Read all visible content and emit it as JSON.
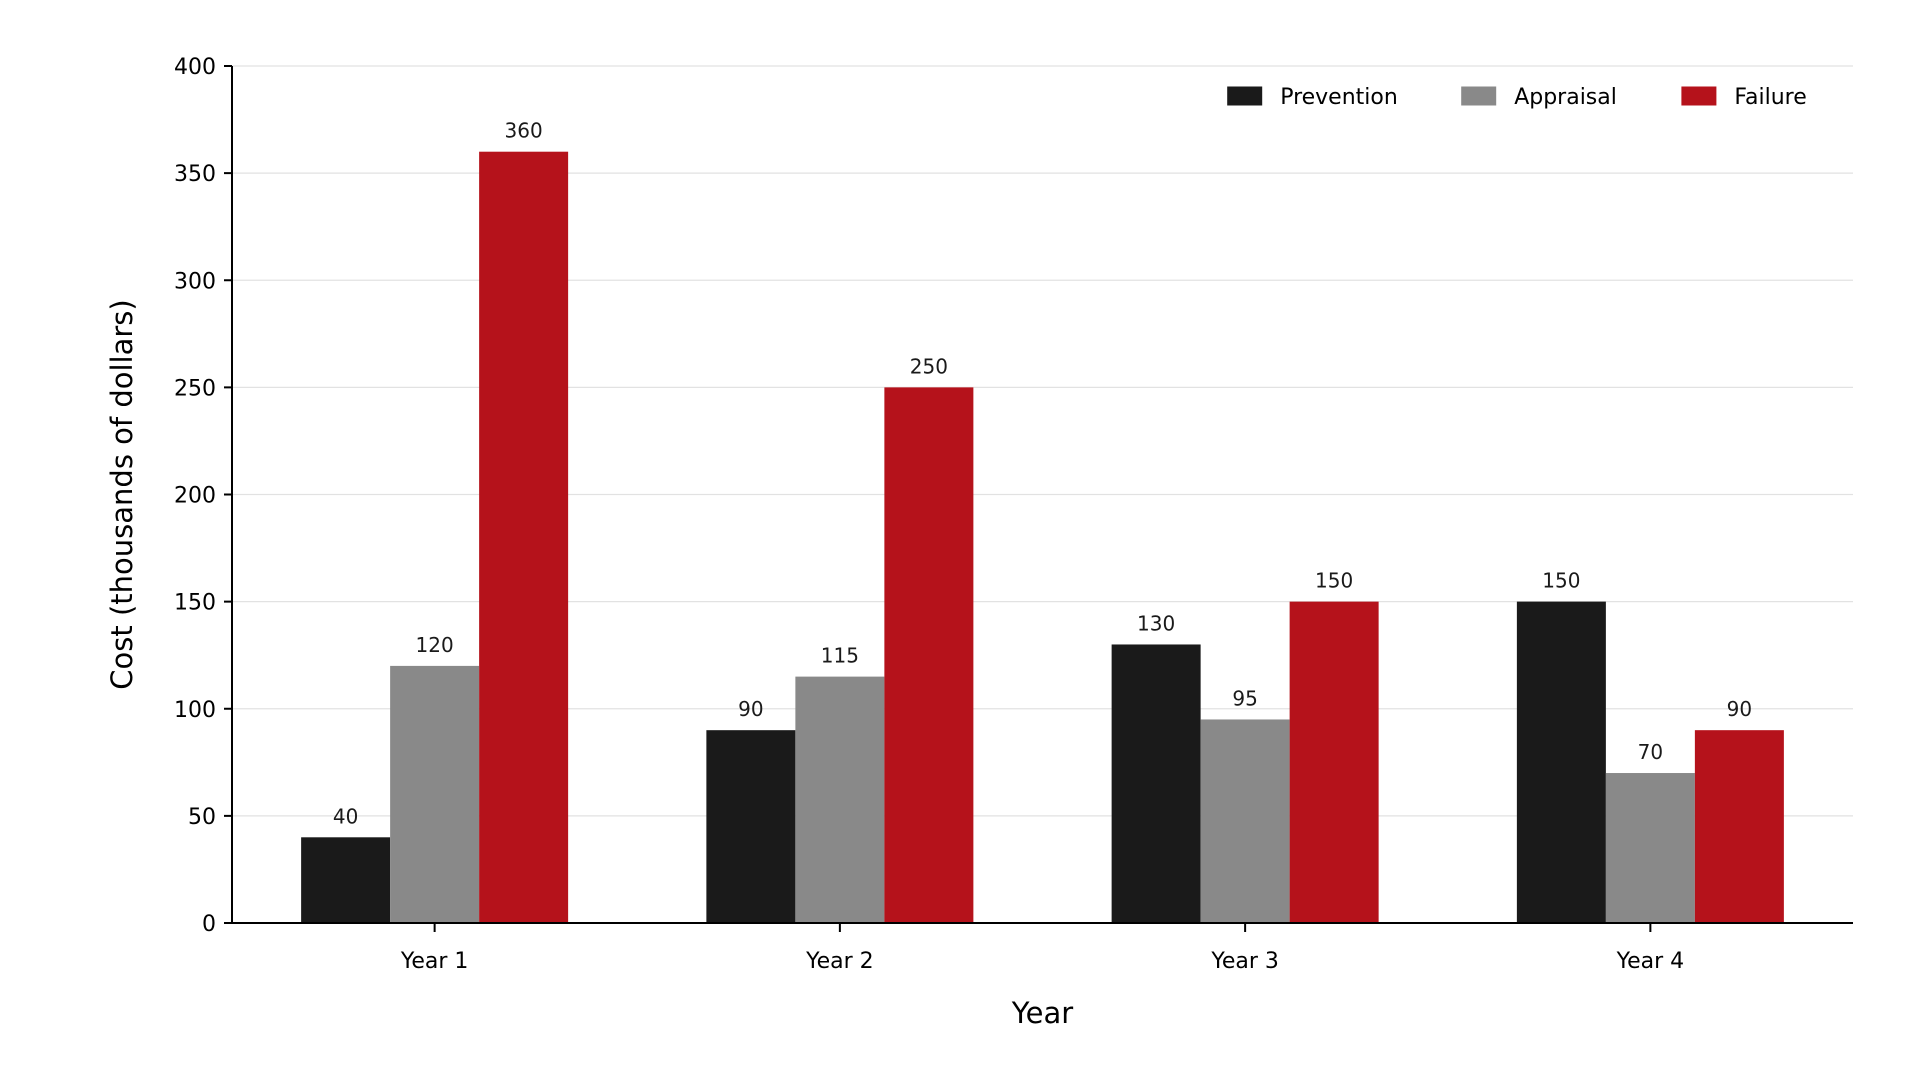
{
  "chart_data": {
    "type": "bar",
    "title": "",
    "xlabel": "Year",
    "ylabel": "Cost (thousands of dollars)",
    "categories": [
      "Year 1",
      "Year 2",
      "Year 3",
      "Year 4"
    ],
    "series": [
      {
        "name": "Prevention",
        "color": "#1a1a1a",
        "values": [
          40,
          90,
          130,
          150
        ]
      },
      {
        "name": "Appraisal",
        "color": "#898989",
        "values": [
          120,
          115,
          95,
          70
        ]
      },
      {
        "name": "Failure",
        "color": "#b5121b",
        "values": [
          360,
          250,
          150,
          90
        ]
      }
    ],
    "ylim": [
      0,
      400
    ],
    "yticks": [
      0,
      50,
      100,
      150,
      200,
      250,
      300,
      350,
      400
    ],
    "grid": true,
    "legend_position": "top-right",
    "data_labels": true
  }
}
